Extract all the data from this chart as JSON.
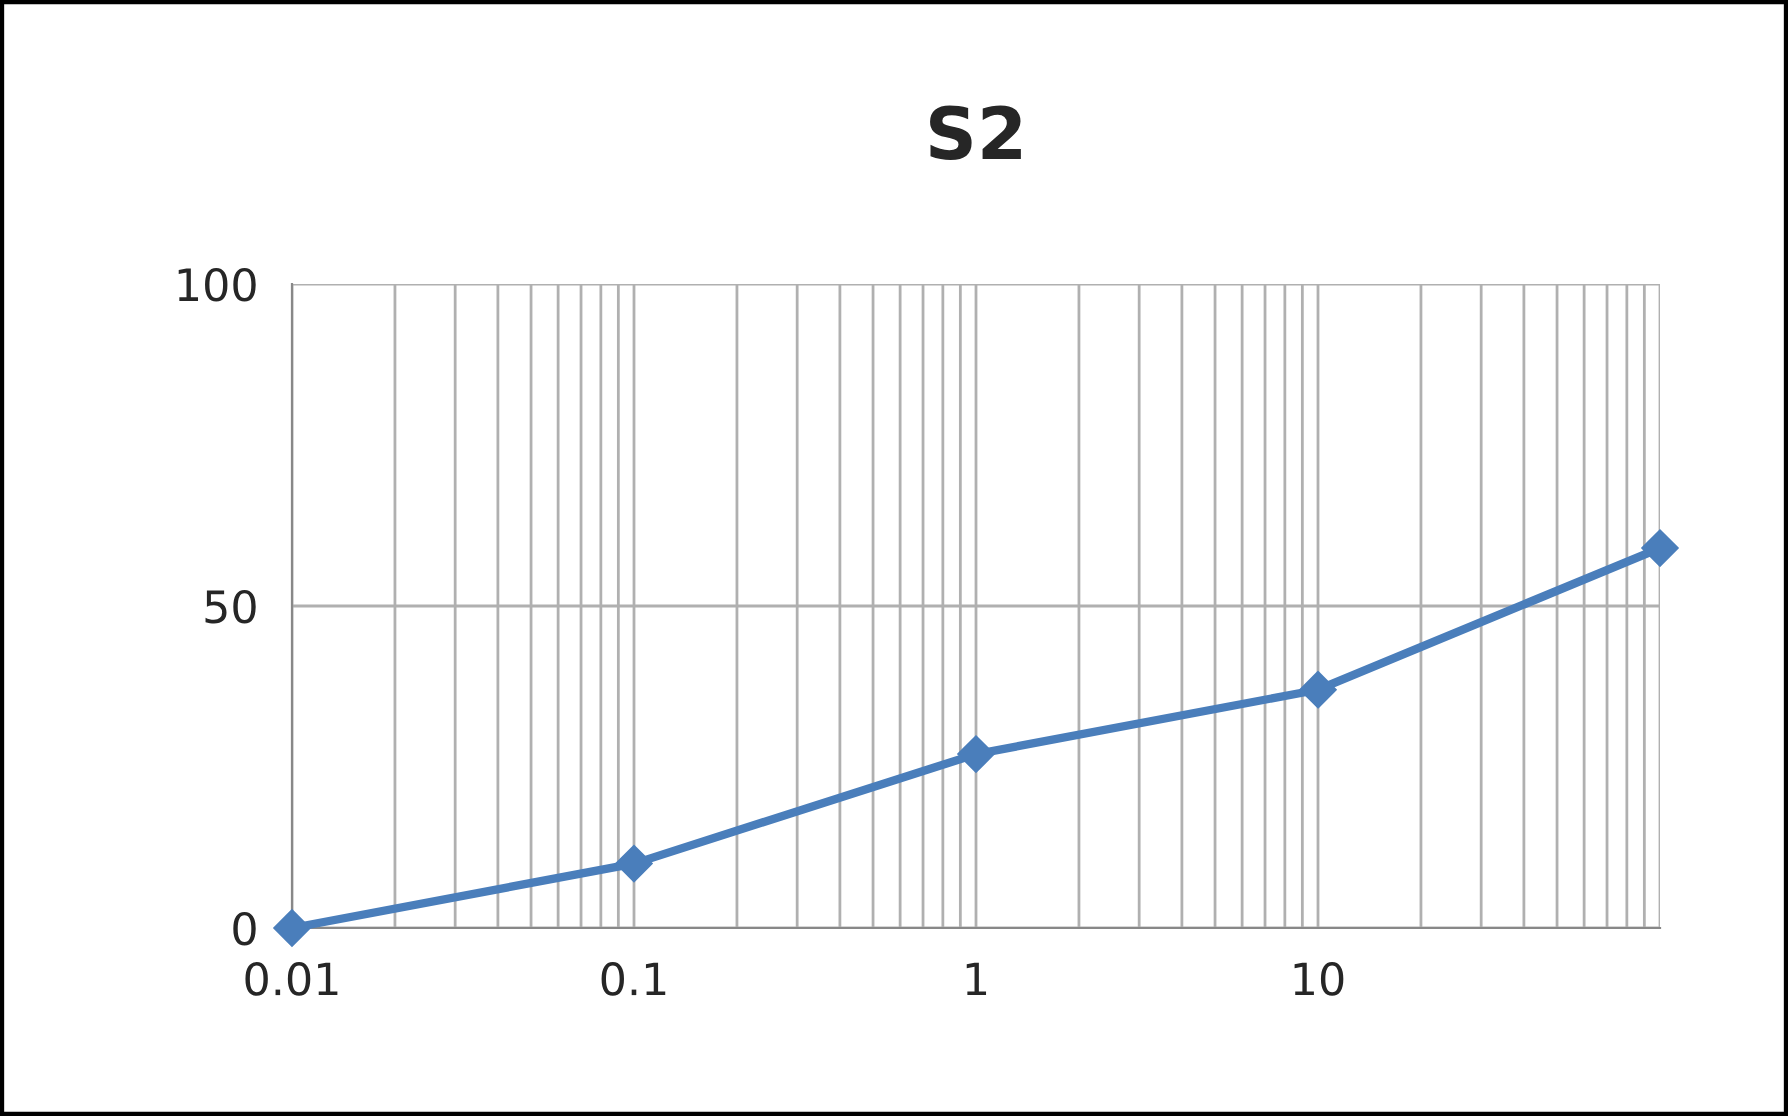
{
  "chart_data": {
    "type": "line",
    "title": "S2",
    "x": [
      0.01,
      0.1,
      1,
      10,
      100
    ],
    "series": [
      {
        "color": "#4a7ebb",
        "values": [
          0,
          10,
          27,
          37,
          59
        ]
      }
    ],
    "log": "x",
    "xlim": [
      0.01,
      100
    ],
    "xticks": [
      0.01,
      0.1,
      1,
      10,
      {
        "value": 100,
        "label": null
      }
    ],
    "ylim": [
      0,
      100
    ],
    "yticks": [
      0,
      50,
      100
    ],
    "grid": true,
    "marker": "diamond",
    "line_style": "solid",
    "legend": false
  }
}
